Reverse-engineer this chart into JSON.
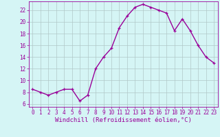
{
  "x": [
    0,
    1,
    2,
    3,
    4,
    5,
    6,
    7,
    8,
    9,
    10,
    11,
    12,
    13,
    14,
    15,
    16,
    17,
    18,
    19,
    20,
    21,
    22,
    23
  ],
  "y": [
    8.5,
    8.0,
    7.5,
    8.0,
    8.5,
    8.5,
    6.5,
    7.5,
    12.0,
    14.0,
    15.5,
    19.0,
    21.0,
    22.5,
    23.0,
    22.5,
    22.0,
    21.5,
    18.5,
    20.5,
    18.5,
    16.0,
    14.0,
    13.0
  ],
  "line_color": "#990099",
  "marker": "+",
  "marker_color": "#990099",
  "bg_color": "#d5f5f5",
  "grid_color": "#b0c8c8",
  "xlabel": "Windchill (Refroidissement éolien,°C)",
  "xlim": [
    -0.5,
    23.5
  ],
  "ylim": [
    5.5,
    23.5
  ],
  "yticks": [
    6,
    8,
    10,
    12,
    14,
    16,
    18,
    20,
    22
  ],
  "xticks": [
    0,
    1,
    2,
    3,
    4,
    5,
    6,
    7,
    8,
    9,
    10,
    11,
    12,
    13,
    14,
    15,
    16,
    17,
    18,
    19,
    20,
    21,
    22,
    23
  ],
  "tick_label_fontsize": 5.5,
  "xlabel_fontsize": 6.5,
  "line_width": 1.0,
  "marker_size": 3.5
}
